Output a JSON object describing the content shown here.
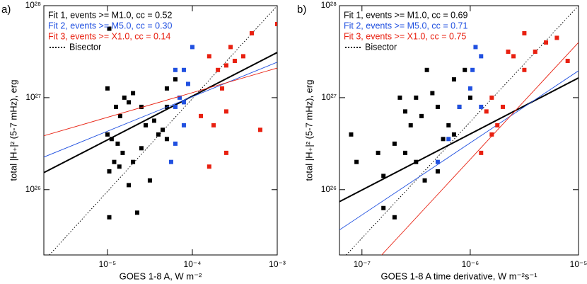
{
  "chart_data": [
    {
      "type": "scatter",
      "label": "a)",
      "x_label": "GOES 1-8 A, W m⁻²",
      "y_label": "total |H₊|² (5-7 mHz), erg",
      "log_x": true,
      "log_y": true,
      "xlim": [
        1.78e-06,
        0.001
      ],
      "ylim": [
        1.95e+25,
        1e+28
      ],
      "xticks": [
        {
          "value": 1e-05,
          "label": "10⁻⁵"
        },
        {
          "value": 0.0001,
          "label": "10⁻⁴"
        },
        {
          "value": 0.001,
          "label": "10⁻³"
        }
      ],
      "yticks": [
        {
          "value": 1e+26,
          "label": "10²⁶"
        },
        {
          "value": 1e+27,
          "label": "10²⁷"
        },
        {
          "value": 1e+28,
          "label": "10²⁸"
        }
      ],
      "series": [
        {
          "name": "Fit 1, events >= M1.0, cc = 0.52",
          "color": "#000000",
          "x": [
            1.05e-05,
            1e-05,
            1.26e-05,
            1.58e-05,
            1.78e-05,
            1.41e-05,
            2e-05,
            2.51e-05,
            2.82e-05,
            3.55e-05,
            4.47e-05,
            5.01e-05,
            1e-05,
            1.12e-05,
            1.32e-05,
            1.51e-05,
            2e-05,
            1.2e-05,
            1.05e-05,
            1.38e-05,
            1.78e-05,
            1.05e-05,
            2.24e-05,
            3.16e-05,
            3.98e-05,
            2.51e-05,
            5.01e-05,
            6.31e-05,
            5.01e-05
          ],
          "values": [
            5.62e+27,
            1.26e+27,
            7.94e+26,
            1e+27,
            8.91e+26,
            6.31e+26,
            1.12e+27,
            7.94e+26,
            5.01e+26,
            5.62e+26,
            4.47e+26,
            7.94e+26,
            3.98e+26,
            3.55e+26,
            3.16e+26,
            2.51e+26,
            2e+26,
            2e+26,
            1.58e+26,
            1.78e+26,
            1.12e+26,
            5.01e+25,
            5.62e+25,
            1.26e+26,
            3.98e+26,
            2.82e+26,
            3.55e+26,
            1.58e+27,
            1.26e+27
          ],
          "fit": {
            "x": [
              1.78e-06,
              0.001
            ],
            "values": [
              1.53e+26,
              3.1e+27
            ]
          }
        },
        {
          "name": "Fit 2, events >= M5.0, cc = 0.30",
          "color": "#2050e0",
          "x": [
            6.31e-05,
            7.08e-05,
            8.91e-05,
            7.94e-05,
            0.0001,
            7.94e-05,
            6.31e-05,
            7.94e-05,
            6.31e-05,
            5.62e-05
          ],
          "values": [
            7.94e+26,
            1e+27,
            1.41e+27,
            8.91e+26,
            3.55e+27,
            2e+27,
            2e+27,
            5.01e+26,
            3.16e+26,
            2e+26
          ],
          "fit": {
            "x": [
              1.78e-06,
              0.001
            ],
            "values": [
              2.26e+26,
              2.43e+27
            ]
          }
        },
        {
          "name": "Fit 3, events >= X1.0, cc = 0.14",
          "color": "#e82010",
          "x": [
            0.000316,
            0.000158,
            0.0002,
            0.000251,
            0.000224,
            0.000251,
            0.000398,
            0.000501,
            0.000126,
            0.000178,
            0.000251,
            0.000158,
            0.000631,
            0.001,
            0.000282
          ],
          "values": [
            2.51e+27,
            2.82e+27,
            2e+27,
            2.24e+27,
            1.26e+27,
            7.08e+26,
            2.82e+27,
            5.01e+27,
            6.31e+26,
            5.01e+26,
            2.51e+26,
            1.78e+26,
            4.47e+26,
            6.31e+27,
            3.55e+27
          ],
          "fit": {
            "x": [
              1.78e-06,
              0.001
            ],
            "values": [
              3.85e+26,
              2.1e+27
            ]
          }
        }
      ],
      "bisector": {
        "name": "Bisector",
        "x": [
          2.07e-06,
          0.001
        ],
        "values": [
          1.95e+25,
          1e+28
        ]
      }
    },
    {
      "type": "scatter",
      "label": "b)",
      "x_label": "GOES 1-8 A time derivative, W m⁻²s⁻¹",
      "y_label": "total |H₊|² (5-7 mHz), erg",
      "log_x": true,
      "log_y": true,
      "xlim": [
        6.2e-08,
        1e-05
      ],
      "ylim": [
        1.95e+25,
        1e+28
      ],
      "xticks": [
        {
          "value": 1e-07,
          "label": "10⁻⁷"
        },
        {
          "value": 1e-06,
          "label": "10⁻⁶"
        },
        {
          "value": 1e-05,
          "label": "10⁻⁵"
        }
      ],
      "yticks": [
        {
          "value": 1e+26,
          "label": "10²⁶"
        },
        {
          "value": 1e+27,
          "label": "10²⁷"
        },
        {
          "value": 1e+28,
          "label": "10²⁸"
        }
      ],
      "series": [
        {
          "name": "Fit 1, events >= M1.0, cc = 0.69",
          "color": "#000000",
          "x": [
            7.94e-08,
            8.91e-08,
            1.58e-07,
            1.58e-07,
            2e-07,
            2.24e-07,
            2.51e-07,
            2.82e-07,
            3.16e-07,
            3.55e-07,
            2.51e-07,
            3.16e-07,
            3.98e-07,
            4.47e-07,
            5.01e-07,
            6.31e-07,
            7.08e-07,
            7.94e-07,
            8.91e-07,
            5.01e-07,
            5.62e-07,
            7.08e-07,
            1e-06,
            2e-07,
            1.41e-07,
            3.8e-07
          ],
          "values": [
            3.98e+26,
            2e+26,
            6.31e+25,
            1.41e+26,
            3.16e+26,
            1e+27,
            7.08e+26,
            5.01e+26,
            1e+27,
            6.31e+26,
            2.51e+26,
            2e+26,
            2e+27,
            1.12e+27,
            7.94e+26,
            5.01e+26,
            1.58e+27,
            7.94e+26,
            2e+27,
            1.58e+26,
            3.55e+26,
            3.98e+26,
            1e+27,
            5.01e+25,
            2.51e+26,
            1.26e+26
          ],
          "fit": {
            "x": [
              6.2e-08,
              1e-05
            ],
            "values": [
              7.4e+25,
              1.64e+27
            ]
          }
        },
        {
          "name": "Fit 2, events >= M5.0, cc = 0.71",
          "color": "#2050e0",
          "x": [
            7.94e-07,
            1e-06,
            1.12e-06,
            1.26e-06,
            1.05e-06,
            5.01e-07,
            6.31e-07,
            1.26e-06
          ],
          "values": [
            7.94e+26,
            1.26e+27,
            3.55e+27,
            2.82e+27,
            2e+27,
            2e+26,
            3.55e+26,
            7.94e+26
          ],
          "fit": {
            "x": [
              6.2e-08,
              1e-05
            ],
            "values": [
              3.65e+25,
              1.96e+27
            ]
          }
        },
        {
          "name": "Fit 3, events >= X1.0, cc = 0.75",
          "color": "#e82010",
          "x": [
            6.31e-06,
            7.94e-06,
            3.98e-06,
            3.16e-06,
            2.51e-06,
            2.24e-06,
            1.58e-06,
            1.41e-06,
            1.26e-06,
            1.58e-06,
            2e-06,
            1.78e-06,
            3.16e-06,
            5.01e-06
          ],
          "values": [
            4.47e+27,
            2.51e+27,
            3.16e+27,
            5.01e+27,
            2.82e+27,
            3.16e+27,
            1e+27,
            7.08e+26,
            2.51e+26,
            3.98e+26,
            7.94e+26,
            5.01e+26,
            2e+27,
            3.98e+27
          ],
          "fit": {
            "x": [
              1.52e-07,
              1e-05
            ],
            "values": [
              1.95e+25,
              3.98e+27
            ]
          }
        }
      ],
      "bisector": {
        "name": "Bisector",
        "x": [
          7.16e-08,
          1e-05
        ],
        "values": [
          1.95e+25,
          1e+28
        ]
      }
    }
  ]
}
